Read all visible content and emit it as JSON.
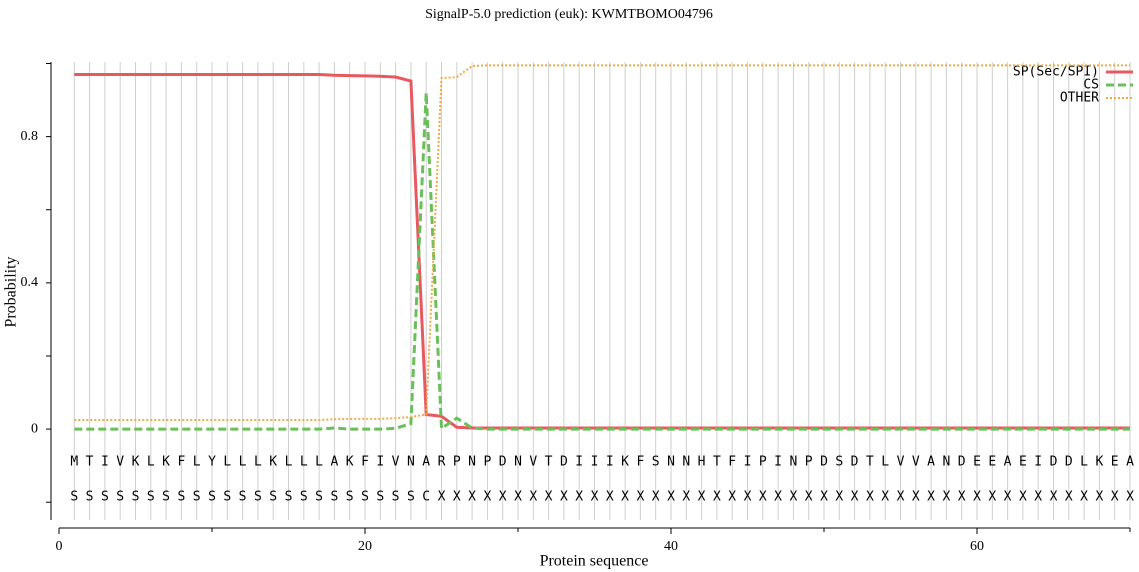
{
  "chart_data": {
    "type": "line",
    "title": "SignalP-5.0 prediction (euk):  KWMTBOMO04796",
    "y_label": "Probability",
    "x_label": "Protein sequence",
    "xlim": [
      0,
      70
    ],
    "xticks": [
      0,
      20,
      40,
      60
    ],
    "xticks_minor": [
      10,
      30,
      50,
      70
    ],
    "ylim": [
      -0.25,
      1.0
    ],
    "yticks": [
      0,
      0.4,
      0.8
    ],
    "yticks_minor": [
      -0.2,
      0.2,
      0.6,
      1.0
    ],
    "grid": true,
    "legend": "upper right",
    "x": [
      1,
      2,
      3,
      4,
      5,
      6,
      7,
      8,
      9,
      10,
      11,
      12,
      13,
      14,
      15,
      16,
      17,
      18,
      19,
      20,
      21,
      22,
      23,
      24,
      25,
      26,
      27,
      28,
      29,
      30,
      31,
      32,
      33,
      34,
      35,
      36,
      37,
      38,
      39,
      40,
      41,
      42,
      43,
      44,
      45,
      46,
      47,
      48,
      49,
      50,
      51,
      52,
      53,
      54,
      55,
      56,
      57,
      58,
      59,
      60,
      61,
      62,
      63,
      64,
      65,
      66,
      67,
      68,
      69,
      70
    ],
    "sequence": [
      "M",
      "T",
      "I",
      "V",
      "K",
      "L",
      "K",
      "F",
      "L",
      "Y",
      "L",
      "L",
      "L",
      "K",
      "L",
      "L",
      "L",
      "A",
      "K",
      "F",
      "I",
      "V",
      "N",
      "A",
      "R",
      "P",
      "N",
      "P",
      "D",
      "N",
      "V",
      "T",
      "D",
      "I",
      "I",
      "I",
      "K",
      "F",
      "S",
      "N",
      "N",
      "H",
      "T",
      "F",
      "I",
      "P",
      "I",
      "N",
      "P",
      "D",
      "S",
      "D",
      "T",
      "L",
      "V",
      "V",
      "A",
      "N",
      "D",
      "E",
      "E",
      "A",
      "E",
      "I",
      "D",
      "D",
      "L",
      "K",
      "E",
      "A"
    ],
    "annotation": [
      "S",
      "S",
      "S",
      "S",
      "S",
      "S",
      "S",
      "S",
      "S",
      "S",
      "S",
      "S",
      "S",
      "S",
      "S",
      "S",
      "S",
      "S",
      "S",
      "S",
      "S",
      "S",
      "S",
      "C",
      "X",
      "X",
      "X",
      "X",
      "X",
      "X",
      "X",
      "X",
      "X",
      "X",
      "X",
      "X",
      "X",
      "X",
      "X",
      "X",
      "X",
      "X",
      "X",
      "X",
      "X",
      "X",
      "X",
      "X",
      "X",
      "X",
      "X",
      "X",
      "X",
      "X",
      "X",
      "X",
      "X",
      "X",
      "X",
      "X",
      "X",
      "X",
      "X",
      "X",
      "X",
      "X",
      "X",
      "X",
      "X",
      "X"
    ],
    "series": [
      {
        "name": "SP(Sec/SPI)",
        "color": "#e8585f",
        "style": "solid",
        "values": [
          0.97,
          0.97,
          0.97,
          0.97,
          0.97,
          0.97,
          0.97,
          0.97,
          0.97,
          0.97,
          0.97,
          0.97,
          0.97,
          0.97,
          0.97,
          0.97,
          0.97,
          0.968,
          0.967,
          0.966,
          0.965,
          0.963,
          0.952,
          0.04,
          0.035,
          0.005,
          0.003,
          0.003,
          0.003,
          0.003,
          0.003,
          0.003,
          0.003,
          0.003,
          0.003,
          0.003,
          0.003,
          0.003,
          0.003,
          0.003,
          0.003,
          0.003,
          0.003,
          0.003,
          0.003,
          0.003,
          0.003,
          0.003,
          0.003,
          0.003,
          0.003,
          0.003,
          0.003,
          0.003,
          0.003,
          0.003,
          0.003,
          0.003,
          0.003,
          0.003,
          0.003,
          0.003,
          0.003,
          0.003,
          0.003,
          0.003,
          0.003,
          0.003,
          0.003,
          0.003
        ]
      },
      {
        "name": "CS",
        "color": "#6bbf59",
        "style": "dashed",
        "values": [
          0,
          0,
          0,
          0,
          0,
          0,
          0,
          0,
          0,
          0,
          0,
          0,
          0,
          0,
          0,
          0,
          0,
          0.003,
          0,
          0,
          0,
          0.002,
          0.015,
          0.92,
          0.002,
          0.03,
          0.003,
          0,
          0,
          0,
          0,
          0,
          0,
          0,
          0,
          0,
          0,
          0,
          0,
          0,
          0,
          0,
          0,
          0,
          0,
          0,
          0,
          0,
          0,
          0,
          0,
          0,
          0,
          0,
          0,
          0,
          0,
          0,
          0,
          0,
          0,
          0,
          0,
          0,
          0,
          0,
          0,
          0,
          0,
          0
        ]
      },
      {
        "name": "OTHER",
        "color": "#f5a742",
        "style": "dotted",
        "values": [
          0.025,
          0.025,
          0.025,
          0.025,
          0.025,
          0.025,
          0.025,
          0.025,
          0.025,
          0.025,
          0.025,
          0.025,
          0.025,
          0.025,
          0.025,
          0.025,
          0.025,
          0.027,
          0.028,
          0.028,
          0.028,
          0.03,
          0.033,
          0.04,
          0.96,
          0.963,
          0.993,
          0.995,
          0.995,
          0.995,
          0.995,
          0.995,
          0.995,
          0.995,
          0.995,
          0.995,
          0.995,
          0.995,
          0.995,
          0.995,
          0.995,
          0.995,
          0.995,
          0.995,
          0.995,
          0.995,
          0.995,
          0.995,
          0.995,
          0.995,
          0.995,
          0.995,
          0.995,
          0.995,
          0.995,
          0.995,
          0.995,
          0.995,
          0.995,
          0.995,
          0.995,
          0.995,
          0.995,
          0.995,
          0.995,
          0.995,
          0.995,
          0.995,
          0.995,
          0.995
        ]
      }
    ]
  }
}
